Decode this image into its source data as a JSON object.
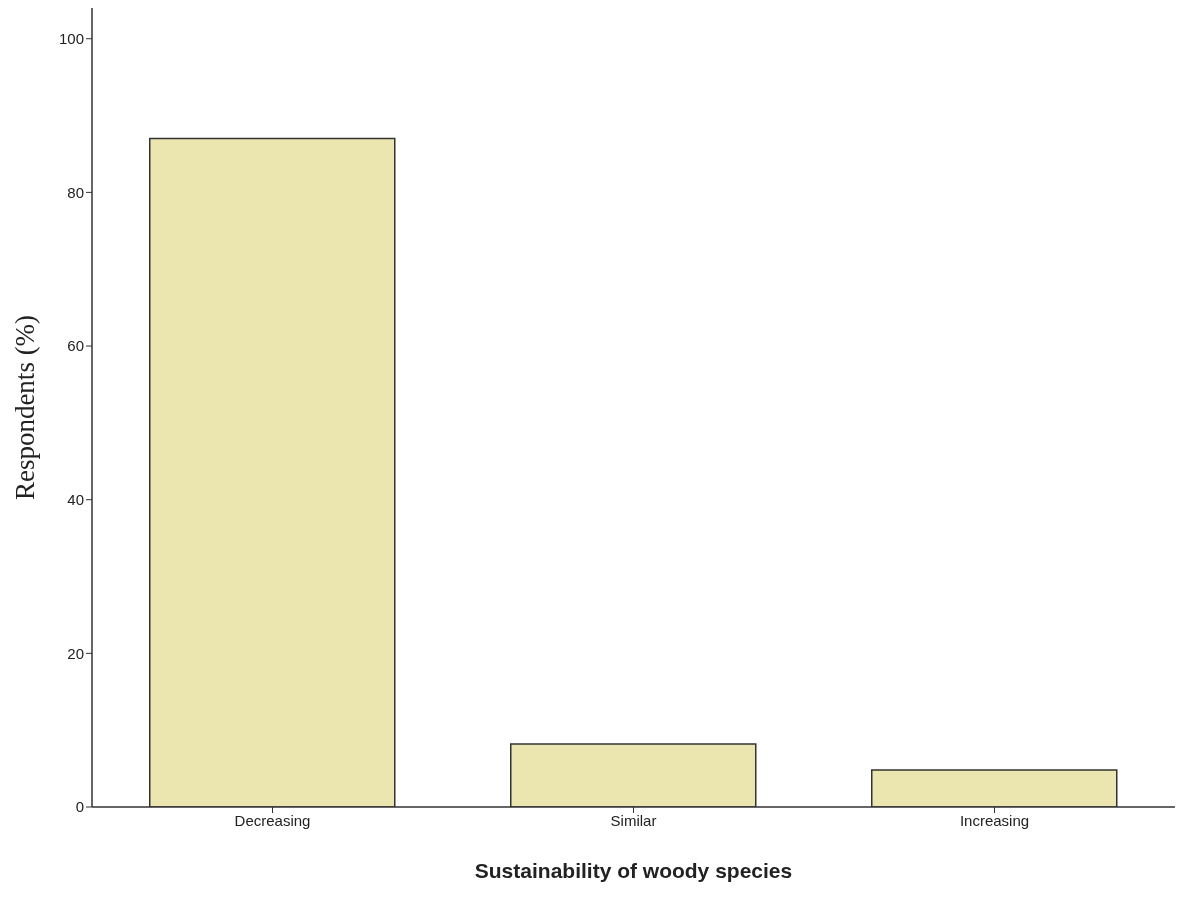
{
  "chart_data": {
    "type": "bar",
    "xlabel": "Sustainability of woody species",
    "ylabel": "Respondents (%)",
    "categories": [
      "Decreasing",
      "Similar",
      "Increasing"
    ],
    "values": [
      87.0,
      8.2,
      4.8
    ],
    "color": "#ebe6b0",
    "ylim": [
      0,
      104
    ],
    "yticks": [
      0,
      20,
      40,
      60,
      80,
      100
    ],
    "grid": false,
    "legend": false
  }
}
